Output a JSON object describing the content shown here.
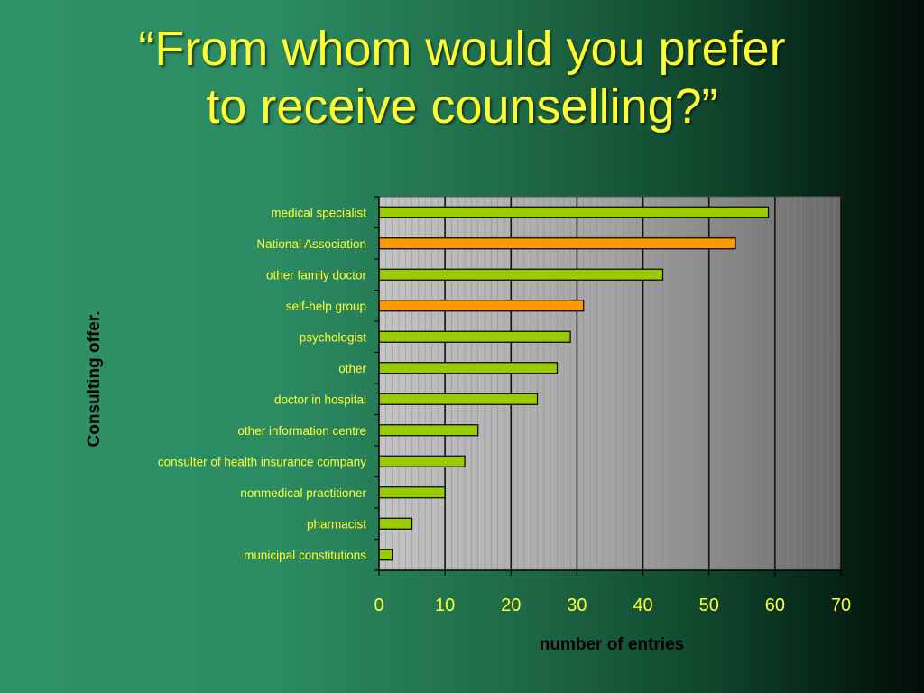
{
  "slide": {
    "title_line1": "“From whom would you prefer",
    "title_line2": "to receive counselling?”"
  },
  "colors": {
    "title": "#ffff33",
    "bar_green": "#99cc00",
    "bar_orange": "#ff9900",
    "bar_outline": "#000000"
  },
  "chart_data": {
    "type": "bar",
    "orientation": "horizontal",
    "title": "“From whom would you prefer to receive counselling?”",
    "xlabel": "number of entries",
    "ylabel": "Consulting offer.",
    "xlim": [
      0,
      70
    ],
    "xticks": [
      0,
      10,
      20,
      30,
      40,
      50,
      60,
      70
    ],
    "grid": true,
    "legend": "none",
    "categories": [
      "medical specialist",
      "National Association",
      "other family doctor",
      "self-help group",
      "psychologist",
      "other",
      "doctor in hospital",
      "other information centre",
      "consulter of health insurance company",
      "nonmedical practitioner",
      "pharmacist",
      "municipal constitutions"
    ],
    "values": [
      59,
      54,
      43,
      31,
      29,
      27,
      24,
      15,
      13,
      10,
      5,
      2
    ],
    "highlight": [
      "green",
      "orange",
      "green",
      "orange",
      "green",
      "green",
      "green",
      "green",
      "green",
      "green",
      "green",
      "green"
    ]
  }
}
